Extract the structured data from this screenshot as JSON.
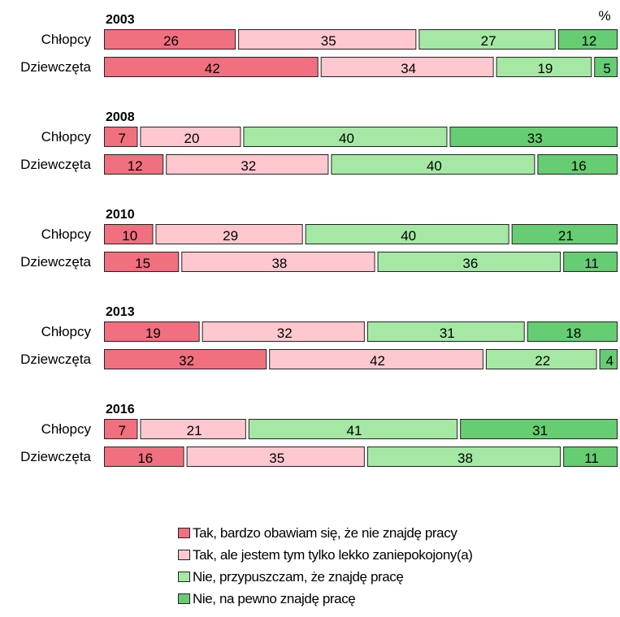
{
  "chart_data": {
    "type": "bar",
    "stacked": true,
    "orientation": "horizontal",
    "unit_label": "%",
    "categories": [
      "Chłopcy",
      "Dziewczęta"
    ],
    "groups": [
      {
        "year": "2003",
        "rows": [
          {
            "label": "Chłopcy",
            "values": [
              26,
              35,
              27,
              12
            ]
          },
          {
            "label": "Dziewczęta",
            "values": [
              42,
              34,
              19,
              5
            ]
          }
        ]
      },
      {
        "year": "2008",
        "rows": [
          {
            "label": "Chłopcy",
            "values": [
              7,
              20,
              40,
              33
            ]
          },
          {
            "label": "Dziewczęta",
            "values": [
              12,
              32,
              40,
              16
            ]
          }
        ]
      },
      {
        "year": "2010",
        "rows": [
          {
            "label": "Chłopcy",
            "values": [
              10,
              29,
              40,
              21
            ]
          },
          {
            "label": "Dziewczęta",
            "values": [
              15,
              38,
              36,
              11
            ]
          }
        ]
      },
      {
        "year": "2013",
        "rows": [
          {
            "label": "Chłopcy",
            "values": [
              19,
              32,
              31,
              18
            ]
          },
          {
            "label": "Dziewczęta",
            "values": [
              32,
              42,
              22,
              4
            ]
          }
        ]
      },
      {
        "year": "2016",
        "rows": [
          {
            "label": "Chłopcy",
            "values": [
              7,
              21,
              41,
              31
            ]
          },
          {
            "label": "Dziewczęta",
            "values": [
              16,
              35,
              38,
              11
            ]
          }
        ]
      }
    ],
    "series": [
      {
        "name": "Tak, bardzo obawiam się, że nie znajdę pracy",
        "color": "#F0707F"
      },
      {
        "name": "Tak, ale jestem tym tylko lekko zaniepokojony(a)",
        "color": "#FFC8CF"
      },
      {
        "name": "Nie, przypuszczam, że znajdę pracę",
        "color": "#A4E8A4"
      },
      {
        "name": "Nie, na pewno znajdę pracę",
        "color": "#66CD72"
      }
    ],
    "xlim": [
      0,
      100
    ],
    "grid": false,
    "legend_position": "bottom"
  }
}
